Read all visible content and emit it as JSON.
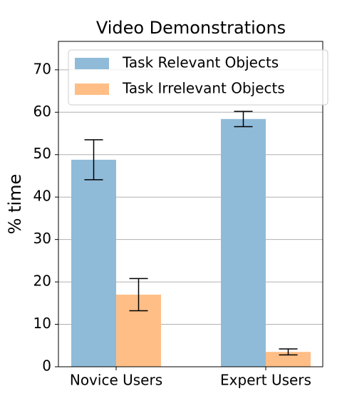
{
  "chart_data": {
    "type": "bar",
    "title": "Video Demonstrations",
    "y_label": "% time",
    "categories": [
      "Novice Users",
      "Expert Users"
    ],
    "series": [
      {
        "name": "Task Relevant Objects",
        "color": "#8fbbd9",
        "values": [
          48.8,
          58.4
        ],
        "errors": [
          4.7,
          1.8
        ]
      },
      {
        "name": "Task Irrelevant Objects",
        "color": "#ffbe86",
        "values": [
          17.0,
          3.5
        ],
        "errors": [
          3.8,
          0.7
        ]
      }
    ],
    "ylim": [
      0,
      76.7
    ],
    "yticks": [
      0,
      10,
      20,
      30,
      40,
      50,
      60,
      70
    ],
    "grid": true,
    "legend": "upper-left"
  }
}
